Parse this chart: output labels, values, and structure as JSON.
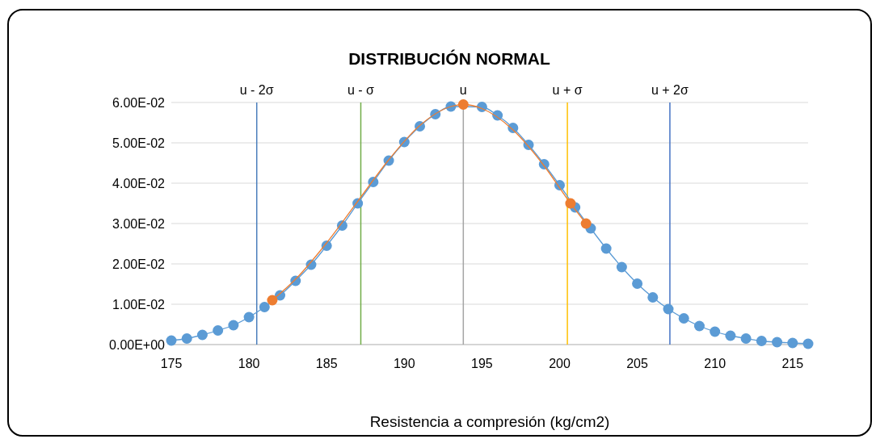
{
  "chart_data": {
    "type": "scatter",
    "title": "DISTRIBUCIÓN NORMAL",
    "xlabel": "Resistencia a compresión (kg/cm2)",
    "xlim": [
      175,
      216
    ],
    "xticks": [
      175,
      180,
      185,
      190,
      195,
      200,
      205,
      210,
      215
    ],
    "ylim": [
      0,
      0.06
    ],
    "yticks": [
      {
        "value": 0,
        "label": "0.00E+00"
      },
      {
        "value": 0.01,
        "label": "1.00E-02"
      },
      {
        "value": 0.02,
        "label": "2.00E-02"
      },
      {
        "value": 0.03,
        "label": "3.00E-02"
      },
      {
        "value": 0.04,
        "label": "4.00E-02"
      },
      {
        "value": 0.05,
        "label": "5.00E-02"
      },
      {
        "value": 0.06,
        "label": "6.00E-02"
      }
    ],
    "grid": "y",
    "marker": "circle",
    "series": [
      {
        "type": "line",
        "color": "#5b9bd5",
        "x": [
          175,
          176,
          177,
          178,
          179,
          180,
          181,
          182,
          183,
          184,
          185,
          186,
          187,
          188,
          189,
          190,
          191,
          192,
          193,
          194,
          195,
          196,
          197,
          198,
          199,
          200,
          201,
          202,
          203,
          204,
          205,
          206,
          207,
          208,
          209,
          210,
          211,
          212,
          213,
          214,
          215,
          216
        ],
        "values": [
          0.001,
          0.0015,
          0.0024,
          0.0035,
          0.0048,
          0.0068,
          0.0093,
          0.0122,
          0.0158,
          0.0198,
          0.0245,
          0.0295,
          0.035,
          0.0403,
          0.0456,
          0.0502,
          0.0541,
          0.0571,
          0.059,
          null,
          0.0589,
          0.0568,
          0.0537,
          0.0495,
          0.0447,
          0.0395,
          0.034,
          0.0288,
          0.0238,
          0.0192,
          0.0151,
          0.0117,
          0.0088,
          0.0065,
          0.0046,
          0.0032,
          0.0022,
          0.0015,
          0.0009,
          0.0006,
          0.0004,
          0.0002
        ]
      },
      {
        "type": "line",
        "color": "#ed7d31",
        "marker": "none",
        "x": [
          181.5,
          183,
          185,
          187,
          189,
          191,
          193,
          193.8,
          195,
          197,
          199,
          200.7,
          201.7
        ],
        "values": [
          0.011,
          0.0162,
          0.0252,
          0.0355,
          0.0458,
          0.0543,
          0.059,
          0.0595,
          0.0585,
          0.0532,
          0.0443,
          0.035,
          0.03
        ]
      },
      {
        "color": "#ed7d31",
        "x": [
          181.5,
          193.8,
          200.7,
          201.7
        ],
        "values": [
          0.011,
          0.0595,
          0.035,
          0.03
        ]
      }
    ],
    "ref_lines": [
      {
        "axis": "x",
        "value": 180.5,
        "label": "u - 2σ",
        "color": "#4a7ebb"
      },
      {
        "axis": "x",
        "value": 187.2,
        "label": "u - σ",
        "color": "#70ad47"
      },
      {
        "axis": "x",
        "value": 193.8,
        "label": "u",
        "color": "#a5a5a5"
      },
      {
        "axis": "x",
        "value": 200.5,
        "label": "u + σ",
        "color": "#ffc000"
      },
      {
        "axis": "x",
        "value": 207.1,
        "label": "u + 2σ",
        "color": "#4472c4"
      }
    ]
  }
}
